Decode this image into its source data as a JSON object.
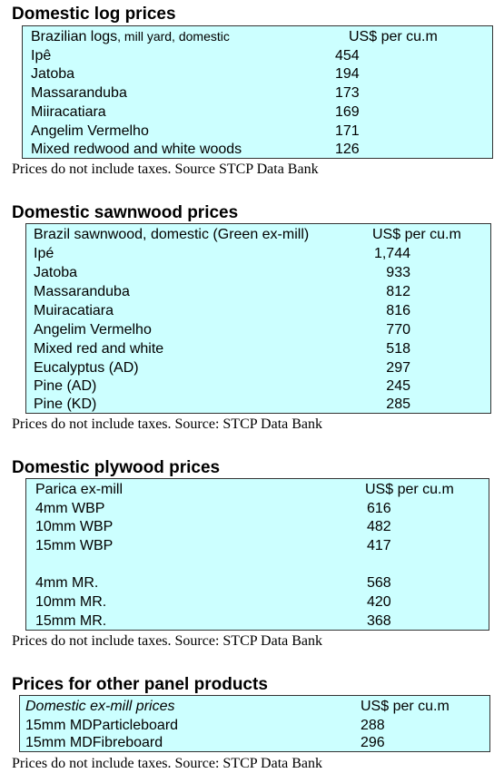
{
  "logs": {
    "title": "Domestic log prices",
    "header_label_main": "Brazilian logs",
    "header_label_sub": ", mill yard, domestic",
    "header_unit": "US$ per cu.m",
    "rows": [
      {
        "label": "Ipê",
        "value": "454"
      },
      {
        "label": "Jatoba",
        "value": "194"
      },
      {
        "label": "Massaranduba",
        "value": "173"
      },
      {
        "label": "Miiracatiara",
        "value": "169"
      },
      {
        "label": "Angelim Vermelho",
        "value": "171"
      },
      {
        "label": "Mixed redwood and white woods",
        "value": "126"
      }
    ],
    "note": "Prices do not include taxes. Source STCP Data Bank"
  },
  "sawnwood": {
    "title": "Domestic sawnwood prices",
    "header_label": "Brazil sawnwood, domestic (Green ex-mill)",
    "header_unit": "US$ per cu.m",
    "rows": [
      {
        "label": "Ipé",
        "value": "1,744"
      },
      {
        "label": "Jatoba",
        "value": "933"
      },
      {
        "label": "Massaranduba",
        "value": "812"
      },
      {
        "label": "Muiracatiara",
        "value": "816"
      },
      {
        "label": "Angelim Vermelho",
        "value": "770"
      },
      {
        "label": "Mixed red and white",
        "value": "518"
      },
      {
        "label": "Eucalyptus (AD)",
        "value": "297"
      },
      {
        "label": "Pine (AD)",
        "value": "245"
      },
      {
        "label": "Pine (KD)",
        "value": "285"
      }
    ],
    "note": "Prices do not include taxes. Source: STCP Data Bank"
  },
  "plywood": {
    "title": "Domestic plywood prices",
    "header_label": "Parica ex-mill",
    "header_unit": "US$ per cu.m",
    "rows_wbp": [
      {
        "label": "4mm WBP",
        "value": "616"
      },
      {
        "label": "10mm WBP",
        "value": "482"
      },
      {
        "label": "15mm WBP",
        "value": "417"
      }
    ],
    "rows_mr": [
      {
        "label": "4mm MR.",
        "value": "568"
      },
      {
        "label": "10mm MR.",
        "value": "420"
      },
      {
        "label": "15mm MR.",
        "value": "368"
      }
    ],
    "note": "Prices do not include taxes. Source: STCP Data Bank"
  },
  "panels": {
    "title": "Prices for other panel products",
    "header_label": "Domestic ex-mill prices",
    "header_unit": "US$ per cu.m",
    "rows": [
      {
        "label": "15mm MDParticleboard",
        "value": "288"
      },
      {
        "label": "15mm MDFibreboard",
        "value": "296"
      }
    ],
    "note": "Prices do not include taxes. Source: STCP Data Bank"
  }
}
